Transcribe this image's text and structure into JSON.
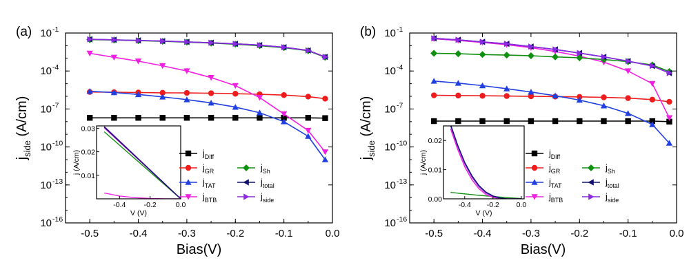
{
  "chart_data": [
    {
      "type": "line",
      "panel_label": "(a)",
      "xlabel": "Bias(V)",
      "ylabel_main": "j",
      "ylabel_sub": "side",
      "ylabel_unit": " (A/cm)",
      "x_ticks": [
        "-0.5",
        "-0.4",
        "-0.3",
        "-0.2",
        "-0.1",
        "0.0"
      ],
      "x_tick_values": [
        -0.5,
        -0.4,
        -0.3,
        -0.2,
        -0.1,
        0.0
      ],
      "xlim": [
        -0.55,
        0.0
      ],
      "y_scale": "log",
      "ylim_exp": [
        -16,
        -1
      ],
      "y_ticks": [
        {
          "exp": -1,
          "base": "10",
          "sup": "-1"
        },
        {
          "exp": -4,
          "base": "10",
          "sup": "-4"
        },
        {
          "exp": -7,
          "base": "10",
          "sup": "-7"
        },
        {
          "exp": -10,
          "base": "10",
          "sup": "-10"
        },
        {
          "exp": -13,
          "base": "10",
          "sup": "-13"
        },
        {
          "exp": -16,
          "base": "10",
          "sup": "-16"
        }
      ],
      "series": [
        {
          "name": "Diff",
          "color": "#000000",
          "marker": "square",
          "x": [
            -0.5,
            -0.45,
            -0.4,
            -0.35,
            -0.3,
            -0.25,
            -0.2,
            -0.15,
            -0.1,
            -0.05,
            -0.015
          ],
          "y": [
            2e-08,
            2e-08,
            2e-08,
            2e-08,
            2e-08,
            2e-08,
            2e-08,
            2e-08,
            2e-08,
            2e-08,
            1.9e-08
          ]
        },
        {
          "name": "GR",
          "color": "#ee1c1c",
          "marker": "circle",
          "x": [
            -0.5,
            -0.45,
            -0.4,
            -0.35,
            -0.3,
            -0.25,
            -0.2,
            -0.15,
            -0.1,
            -0.05,
            -0.015
          ],
          "y": [
            2.2e-06,
            2.1e-06,
            2e-06,
            1.9e-06,
            1.85e-06,
            1.75e-06,
            1.6e-06,
            1.45e-06,
            1.25e-06,
            9.5e-07,
            6.5e-07
          ]
        },
        {
          "name": "TAT",
          "color": "#1f3fe0",
          "marker": "triangle-up",
          "x": [
            -0.5,
            -0.45,
            -0.4,
            -0.35,
            -0.3,
            -0.25,
            -0.2,
            -0.15,
            -0.1,
            -0.05,
            -0.015
          ],
          "y": [
            2.5e-06,
            2e-06,
            1.4e-06,
            9e-07,
            5.5e-07,
            3e-07,
            1.4e-07,
            5e-08,
            1e-08,
            7e-10,
            1e-11
          ]
        },
        {
          "name": "BTB",
          "color": "#f020e0",
          "marker": "triangle-down",
          "x": [
            -0.5,
            -0.45,
            -0.4,
            -0.35,
            -0.3,
            -0.25,
            -0.2,
            -0.15,
            -0.1,
            -0.05,
            -0.015
          ],
          "y": [
            0.0025,
            0.0012,
            0.0006,
            0.00026,
            0.0001,
            3e-05,
            7e-06,
            8e-07,
            4e-08,
            2e-09,
            4e-11
          ]
        },
        {
          "name": "Sh",
          "color": "#109010",
          "marker": "diamond",
          "x": [
            -0.5,
            -0.45,
            -0.4,
            -0.35,
            -0.3,
            -0.25,
            -0.2,
            -0.15,
            -0.1,
            -0.05,
            -0.015
          ],
          "y": [
            0.03,
            0.028,
            0.025,
            0.022,
            0.019,
            0.016,
            0.013,
            0.01,
            0.007,
            0.004,
            0.0012
          ]
        },
        {
          "name": "total",
          "color": "#101070",
          "marker": "triangle-left",
          "x": [
            -0.5,
            -0.45,
            -0.4,
            -0.35,
            -0.3,
            -0.25,
            -0.2,
            -0.15,
            -0.1,
            -0.05,
            -0.015
          ],
          "y": [
            0.032,
            0.029,
            0.026,
            0.023,
            0.02,
            0.017,
            0.014,
            0.011,
            0.0075,
            0.0042,
            0.0013
          ]
        },
        {
          "name": "side",
          "color": "#8a2be2",
          "marker": "triangle-right",
          "x": [
            -0.5,
            -0.45,
            -0.4,
            -0.35,
            -0.3,
            -0.25,
            -0.2,
            -0.15,
            -0.1,
            -0.05,
            -0.015
          ],
          "y": [
            0.032,
            0.029,
            0.026,
            0.023,
            0.02,
            0.017,
            0.014,
            0.011,
            0.0075,
            0.0042,
            0.0013
          ]
        }
      ],
      "legend": [
        {
          "series": "Diff",
          "text": "j",
          "sub": "Diff"
        },
        {
          "series": "GR",
          "text": "j",
          "sub": "GR"
        },
        {
          "series": "TAT",
          "text": "j",
          "sub": "TAT"
        },
        {
          "series": "BTB",
          "text": "j",
          "sub": "BTB"
        },
        {
          "series": "Sh",
          "text": "j",
          "sub": "Sh"
        },
        {
          "series": "total",
          "text": "j",
          "sub": "total"
        },
        {
          "series": "side",
          "text": "j",
          "sub": "side"
        }
      ],
      "inset": {
        "type": "line",
        "xlabel": "V (V)",
        "ylabel": "j (A/cm)",
        "xlim": [
          -0.55,
          0.0
        ],
        "ylim": [
          0,
          0.031
        ],
        "x_ticks": [
          "-0.4",
          "-0.2",
          "0.0"
        ],
        "x_tick_values": [
          -0.4,
          -0.2,
          0.0
        ],
        "y_ticks": [
          "0.01",
          "0.02",
          "0.03"
        ],
        "y_tick_values": [
          0.01,
          0.02,
          0.03
        ],
        "series": [
          {
            "color": "#109010",
            "x": [
              -0.5,
              0.0
            ],
            "y": [
              0.0285,
              0.0
            ]
          },
          {
            "color": "#f020e0",
            "x": [
              -0.5,
              0.0
            ],
            "y": [
              0.0302,
              0.0
            ]
          },
          {
            "color": "#8a2be2",
            "x": [
              -0.5,
              0.0
            ],
            "y": [
              0.0308,
              0.0
            ]
          },
          {
            "color": "#101070",
            "x": [
              -0.5,
              0.0
            ],
            "y": [
              0.0305,
              0.0
            ]
          },
          {
            "color": "#f020e0",
            "x": [
              -0.5,
              -0.4,
              -0.3,
              -0.2,
              -0.1,
              0.0
            ],
            "y": [
              0.0025,
              0.0012,
              0.0005,
              0.00015,
              3e-05,
              0.0
            ]
          }
        ]
      }
    },
    {
      "type": "line",
      "panel_label": "(b)",
      "xlabel": "Bias(V)",
      "ylabel_main": "j",
      "ylabel_sub": "side",
      "ylabel_unit": " (A/cm)",
      "x_ticks": [
        "-0.5",
        "-0.4",
        "-0.3",
        "-0.2",
        "-0.1",
        "0.0"
      ],
      "x_tick_values": [
        -0.5,
        -0.4,
        -0.3,
        -0.2,
        -0.1,
        0.0
      ],
      "xlim": [
        -0.55,
        0.0
      ],
      "y_scale": "log",
      "ylim_exp": [
        -16,
        -1
      ],
      "y_ticks": [
        {
          "exp": -1,
          "base": "10",
          "sup": "-1"
        },
        {
          "exp": -4,
          "base": "10",
          "sup": "-4"
        },
        {
          "exp": -7,
          "base": "10",
          "sup": "-7"
        },
        {
          "exp": -10,
          "base": "10",
          "sup": "-10"
        },
        {
          "exp": -13,
          "base": "10",
          "sup": "-13"
        },
        {
          "exp": -16,
          "base": "10",
          "sup": "-16"
        }
      ],
      "series": [
        {
          "name": "Diff",
          "color": "#000000",
          "marker": "square",
          "x": [
            -0.5,
            -0.45,
            -0.4,
            -0.35,
            -0.3,
            -0.25,
            -0.2,
            -0.15,
            -0.1,
            -0.05,
            -0.015
          ],
          "y": [
            1.1e-08,
            1.1e-08,
            1.1e-08,
            1.1e-08,
            1.1e-08,
            1.1e-08,
            1.1e-08,
            1.1e-08,
            1.1e-08,
            1.1e-08,
            1e-08
          ]
        },
        {
          "name": "GR",
          "color": "#ee1c1c",
          "marker": "circle",
          "x": [
            -0.5,
            -0.45,
            -0.4,
            -0.35,
            -0.3,
            -0.25,
            -0.2,
            -0.15,
            -0.1,
            -0.05,
            -0.015
          ],
          "y": [
            1.2e-06,
            1.15e-06,
            1.1e-06,
            1.05e-06,
            1e-06,
            9.5e-07,
            9e-07,
            8.3e-07,
            7.2e-07,
            5.5e-07,
            3.7e-07
          ]
        },
        {
          "name": "TAT",
          "color": "#1f3fe0",
          "marker": "triangle-up",
          "x": [
            -0.5,
            -0.45,
            -0.4,
            -0.35,
            -0.3,
            -0.25,
            -0.2,
            -0.15,
            -0.1,
            -0.05,
            -0.015
          ],
          "y": [
            1.6e-05,
            1.1e-05,
            7e-06,
            4e-06,
            2.2e-06,
            1.1e-06,
            5e-07,
            1.8e-07,
            4.5e-08,
            6e-09,
            2e-10
          ]
        },
        {
          "name": "BTB",
          "color": "#f020e0",
          "marker": "triangle-down",
          "x": [
            -0.5,
            -0.45,
            -0.4,
            -0.35,
            -0.3,
            -0.25,
            -0.2,
            -0.15,
            -0.1,
            -0.05,
            -0.015
          ],
          "y": [
            0.035,
            0.026,
            0.018,
            0.012,
            0.007,
            0.0035,
            0.0015,
            0.0005,
            0.0001,
            1e-05,
            2e-08
          ]
        },
        {
          "name": "Sh",
          "color": "#109010",
          "marker": "diamond",
          "x": [
            -0.5,
            -0.45,
            -0.4,
            -0.35,
            -0.3,
            -0.25,
            -0.2,
            -0.15,
            -0.1,
            -0.05,
            -0.015
          ],
          "y": [
            0.0025,
            0.0023,
            0.002,
            0.0018,
            0.0016,
            0.0013,
            0.0011,
            0.0008,
            0.00055,
            0.0003,
            9e-05
          ]
        },
        {
          "name": "total",
          "color": "#101070",
          "marker": "triangle-left",
          "x": [
            -0.5,
            -0.45,
            -0.4,
            -0.35,
            -0.3,
            -0.25,
            -0.2,
            -0.15,
            -0.1,
            -0.05,
            -0.015
          ],
          "y": [
            0.038,
            0.029,
            0.02,
            0.014,
            0.0085,
            0.005,
            0.0026,
            0.0013,
            0.0006,
            0.00025,
            7e-05
          ]
        },
        {
          "name": "side",
          "color": "#8a2be2",
          "marker": "triangle-right",
          "x": [
            -0.5,
            -0.45,
            -0.4,
            -0.35,
            -0.3,
            -0.25,
            -0.2,
            -0.15,
            -0.1,
            -0.05,
            -0.015
          ],
          "y": [
            0.038,
            0.029,
            0.02,
            0.014,
            0.0085,
            0.005,
            0.0026,
            0.0013,
            0.0006,
            0.00025,
            7e-05
          ]
        }
      ],
      "legend": [
        {
          "series": "Diff",
          "text": "j",
          "sub": "Diff"
        },
        {
          "series": "GR",
          "text": "j",
          "sub": "GR"
        },
        {
          "series": "TAT",
          "text": "j",
          "sub": "TAT"
        },
        {
          "series": "BTB",
          "text": "j",
          "sub": "BTB"
        },
        {
          "series": "Sh",
          "text": "j",
          "sub": "Sh"
        },
        {
          "series": "total",
          "text": "j",
          "sub": "total"
        },
        {
          "series": "side",
          "text": "j",
          "sub": "side"
        }
      ],
      "inset": {
        "type": "line",
        "xlabel": "V (V)",
        "ylabel": "j (A/cm)",
        "xlim": [
          -0.55,
          0.02
        ],
        "ylim": [
          0,
          0.025
        ],
        "x_ticks": [
          "-0.4",
          "-0.2",
          "0.0"
        ],
        "x_tick_values": [
          -0.4,
          -0.2,
          0.0
        ],
        "y_ticks": [
          "0.00",
          "0.01",
          "0.02"
        ],
        "y_tick_values": [
          0.0,
          0.01,
          0.02
        ],
        "series": [
          {
            "color": "#109010",
            "x": [
              -0.5,
              -0.4,
              -0.3,
              -0.2,
              -0.1,
              0.0
            ],
            "y": [
              0.0022,
              0.0017,
              0.0012,
              0.0008,
              0.0004,
              0.0001
            ]
          },
          {
            "color": "#f020e0",
            "x": [
              -0.5,
              -0.45,
              -0.4,
              -0.35,
              -0.3,
              -0.25,
              -0.2,
              -0.15,
              -0.1
            ],
            "y": [
              0.024,
              0.017,
              0.011,
              0.0066,
              0.0035,
              0.0015,
              0.0005,
              0.0001,
              0.0
            ]
          },
          {
            "color": "#8a2be2",
            "x": [
              -0.5,
              -0.45,
              -0.4,
              -0.35,
              -0.3,
              -0.25,
              -0.2,
              -0.15,
              -0.1,
              0.0
            ],
            "y": [
              0.025,
              0.018,
              0.012,
              0.0075,
              0.0042,
              0.002,
              0.0008,
              0.0002,
              0.0,
              0.0
            ]
          },
          {
            "color": "#101070",
            "x": [
              -0.5,
              -0.45,
              -0.4,
              -0.35,
              -0.3,
              -0.25,
              -0.2,
              -0.15,
              -0.1,
              0.0
            ],
            "y": [
              0.0255,
              0.0185,
              0.0125,
              0.008,
              0.0046,
              0.0023,
              0.001,
              0.0003,
              0.0,
              0.0
            ]
          }
        ]
      }
    }
  ]
}
